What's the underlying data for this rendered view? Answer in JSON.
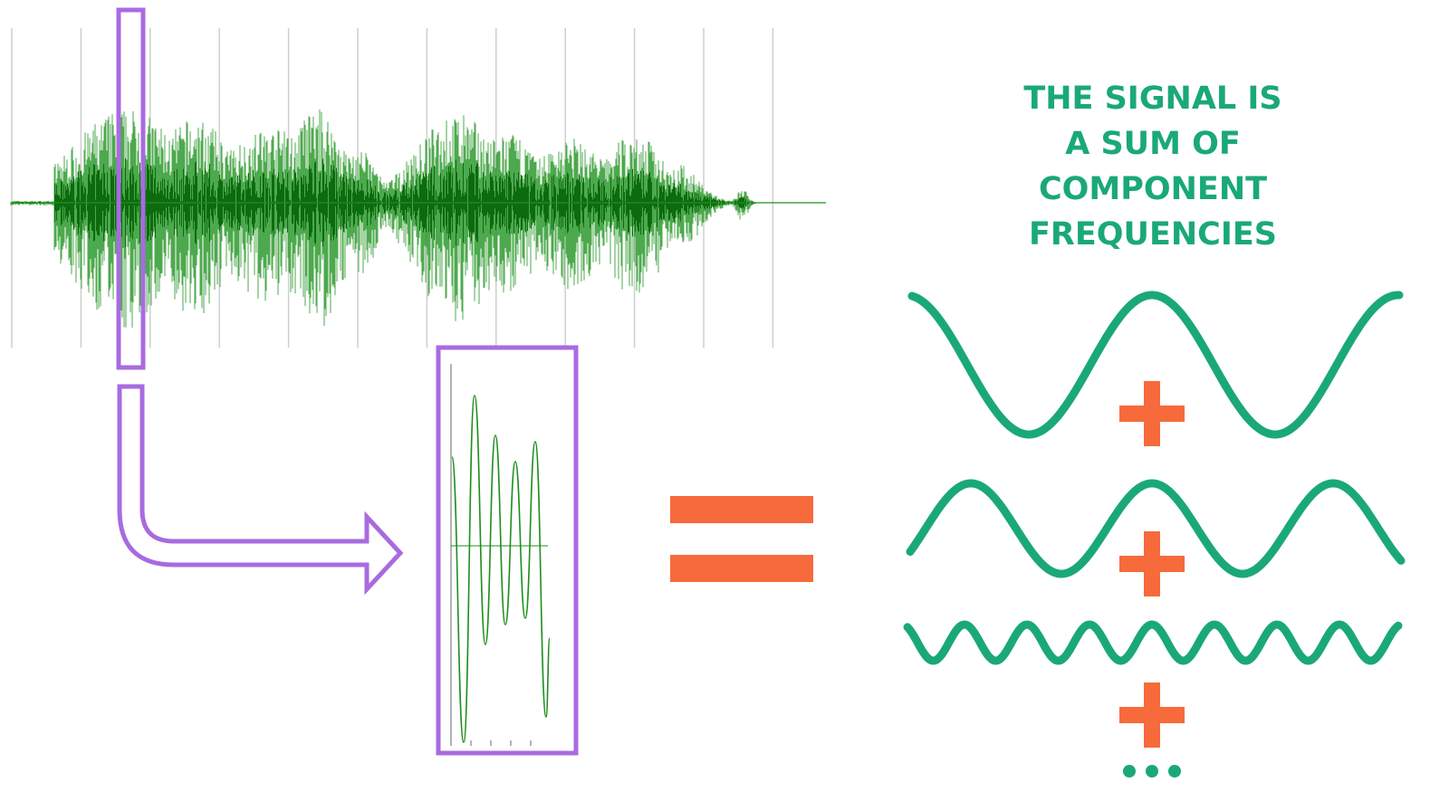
{
  "headline": {
    "lines": [
      "THE SIGNAL IS",
      "A SUM OF",
      "COMPONENT",
      "FREQUENCIES"
    ]
  },
  "colors": {
    "waveform": "#1f8f1f",
    "waveform_dark": "#0f6f10",
    "grid": "#c8c8c8",
    "selection": "#a86be0",
    "component_wave": "#1aa87a",
    "operator": "#f76a3b",
    "headline": "#1aa87a"
  },
  "operators": {
    "equals": "equals-sign",
    "plus": "plus-sign",
    "continuation": "ellipsis-dots"
  },
  "icons": {
    "arrow": "bent-arrow-icon"
  }
}
